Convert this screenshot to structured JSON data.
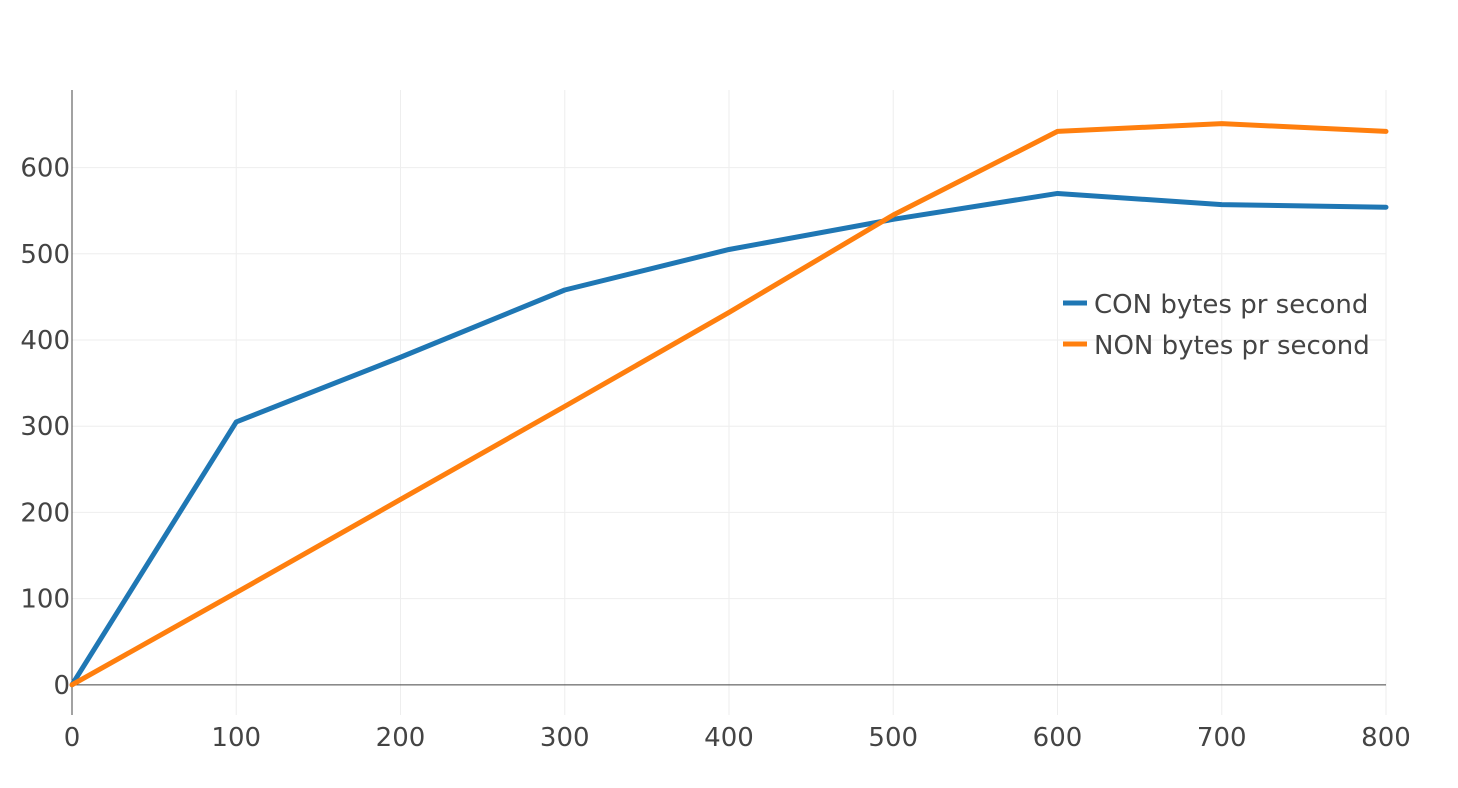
{
  "chart_data": {
    "type": "line",
    "title": "",
    "xlabel": "",
    "ylabel": "",
    "x": [
      0,
      100,
      200,
      300,
      400,
      500,
      600,
      700,
      800
    ],
    "xlim": [
      0,
      800
    ],
    "ylim": [
      -35,
      690
    ],
    "xticks": [
      "0",
      "100",
      "200",
      "300",
      "400",
      "500",
      "600",
      "700",
      "800"
    ],
    "yticks": [
      "0",
      "100",
      "200",
      "300",
      "400",
      "500",
      "600"
    ],
    "grid": true,
    "legend_position": "right",
    "series": [
      {
        "name": "CON bytes pr second",
        "color": "#1f77b4",
        "values": [
          0,
          305,
          380,
          458,
          505,
          540,
          570,
          557,
          554
        ]
      },
      {
        "name": "NON bytes pr second",
        "color": "#ff7f0e",
        "values": [
          0,
          107,
          215,
          323,
          432,
          545,
          642,
          651,
          642
        ]
      }
    ]
  }
}
